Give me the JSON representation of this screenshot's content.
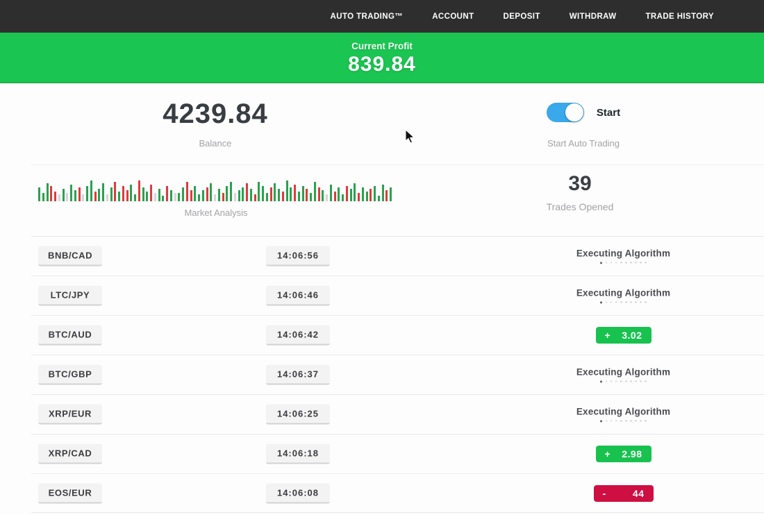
{
  "navbar": {
    "items": [
      {
        "label": "AUTO TRADING™"
      },
      {
        "label": "ACCOUNT"
      },
      {
        "label": "DEPOSIT"
      },
      {
        "label": "WITHDRAW"
      },
      {
        "label": "TRADE HISTORY"
      }
    ]
  },
  "profit_banner": {
    "label": "Current Profit",
    "value": "839.84"
  },
  "stats": {
    "balance": {
      "value": "4239.84",
      "label": "Balance"
    },
    "auto_trading": {
      "toggle_label": "Start",
      "label": "Start Auto Trading",
      "enabled": true
    },
    "market_analysis": {
      "label": "Market Analysis",
      "bars": [
        "g20",
        "g12",
        "g26",
        "r22",
        "r14",
        "x10",
        "g18",
        "x12",
        "g24",
        "g16",
        "r20",
        "x10",
        "g22",
        "g30",
        "r14",
        "g18",
        "g26",
        "x10",
        "g20",
        "r28",
        "g14",
        "r22",
        "r16",
        "g24",
        "g10",
        "r30",
        "g20",
        "g14",
        "r24",
        "x12",
        "g18",
        "g8",
        "r22",
        "g16",
        "x12",
        "g12",
        "g20",
        "r28",
        "r16",
        "g22",
        "g10",
        "g16",
        "r20",
        "g26",
        "x10",
        "g18",
        "r12",
        "g22",
        "g28",
        "x12",
        "g16",
        "g20",
        "r26",
        "g18",
        "r10",
        "g28",
        "g22",
        "g12",
        "r20",
        "g26",
        "g18",
        "r14",
        "g30",
        "g20",
        "r24",
        "g14",
        "g22",
        "r18",
        "g12",
        "g28",
        "r20",
        "g16",
        "x10",
        "g24",
        "r14",
        "g20",
        "g10",
        "r22",
        "g18",
        "g26",
        "r12",
        "g20",
        "g14",
        "r18",
        "g22",
        "g8",
        "g24",
        "r16",
        "g20"
      ]
    },
    "trades_opened": {
      "value": "39",
      "label": "Trades Opened"
    }
  },
  "trades": [
    {
      "pair": "BNB/CAD",
      "time": "14:06:56",
      "status": "executing",
      "status_label": "Executing Algorithm"
    },
    {
      "pair": "LTC/JPY",
      "time": "14:06:46",
      "status": "executing",
      "status_label": "Executing Algorithm"
    },
    {
      "pair": "BTC/AUD",
      "time": "14:06:42",
      "status": "profit",
      "sign": "+",
      "amount": "3.02"
    },
    {
      "pair": "BTC/GBP",
      "time": "14:06:37",
      "status": "executing",
      "status_label": "Executing Algorithm"
    },
    {
      "pair": "XRP/EUR",
      "time": "14:06:25",
      "status": "executing",
      "status_label": "Executing Algorithm"
    },
    {
      "pair": "XRP/CAD",
      "time": "14:06:18",
      "status": "profit",
      "sign": "+",
      "amount": "2.98"
    },
    {
      "pair": "EOS/EUR",
      "time": "14:06:08",
      "status": "loss",
      "sign": "-",
      "amount": "44"
    }
  ],
  "colors": {
    "navbar_bg": "#2e2e2e",
    "banner_green": "#1bc552",
    "badge_green": "#17c24e",
    "badge_red": "#ce0f41",
    "toggle_blue": "#3aa9ec",
    "bar_green": "#2aa14c",
    "bar_red": "#dd3b3b",
    "bar_gray": "#d6d6d6"
  }
}
